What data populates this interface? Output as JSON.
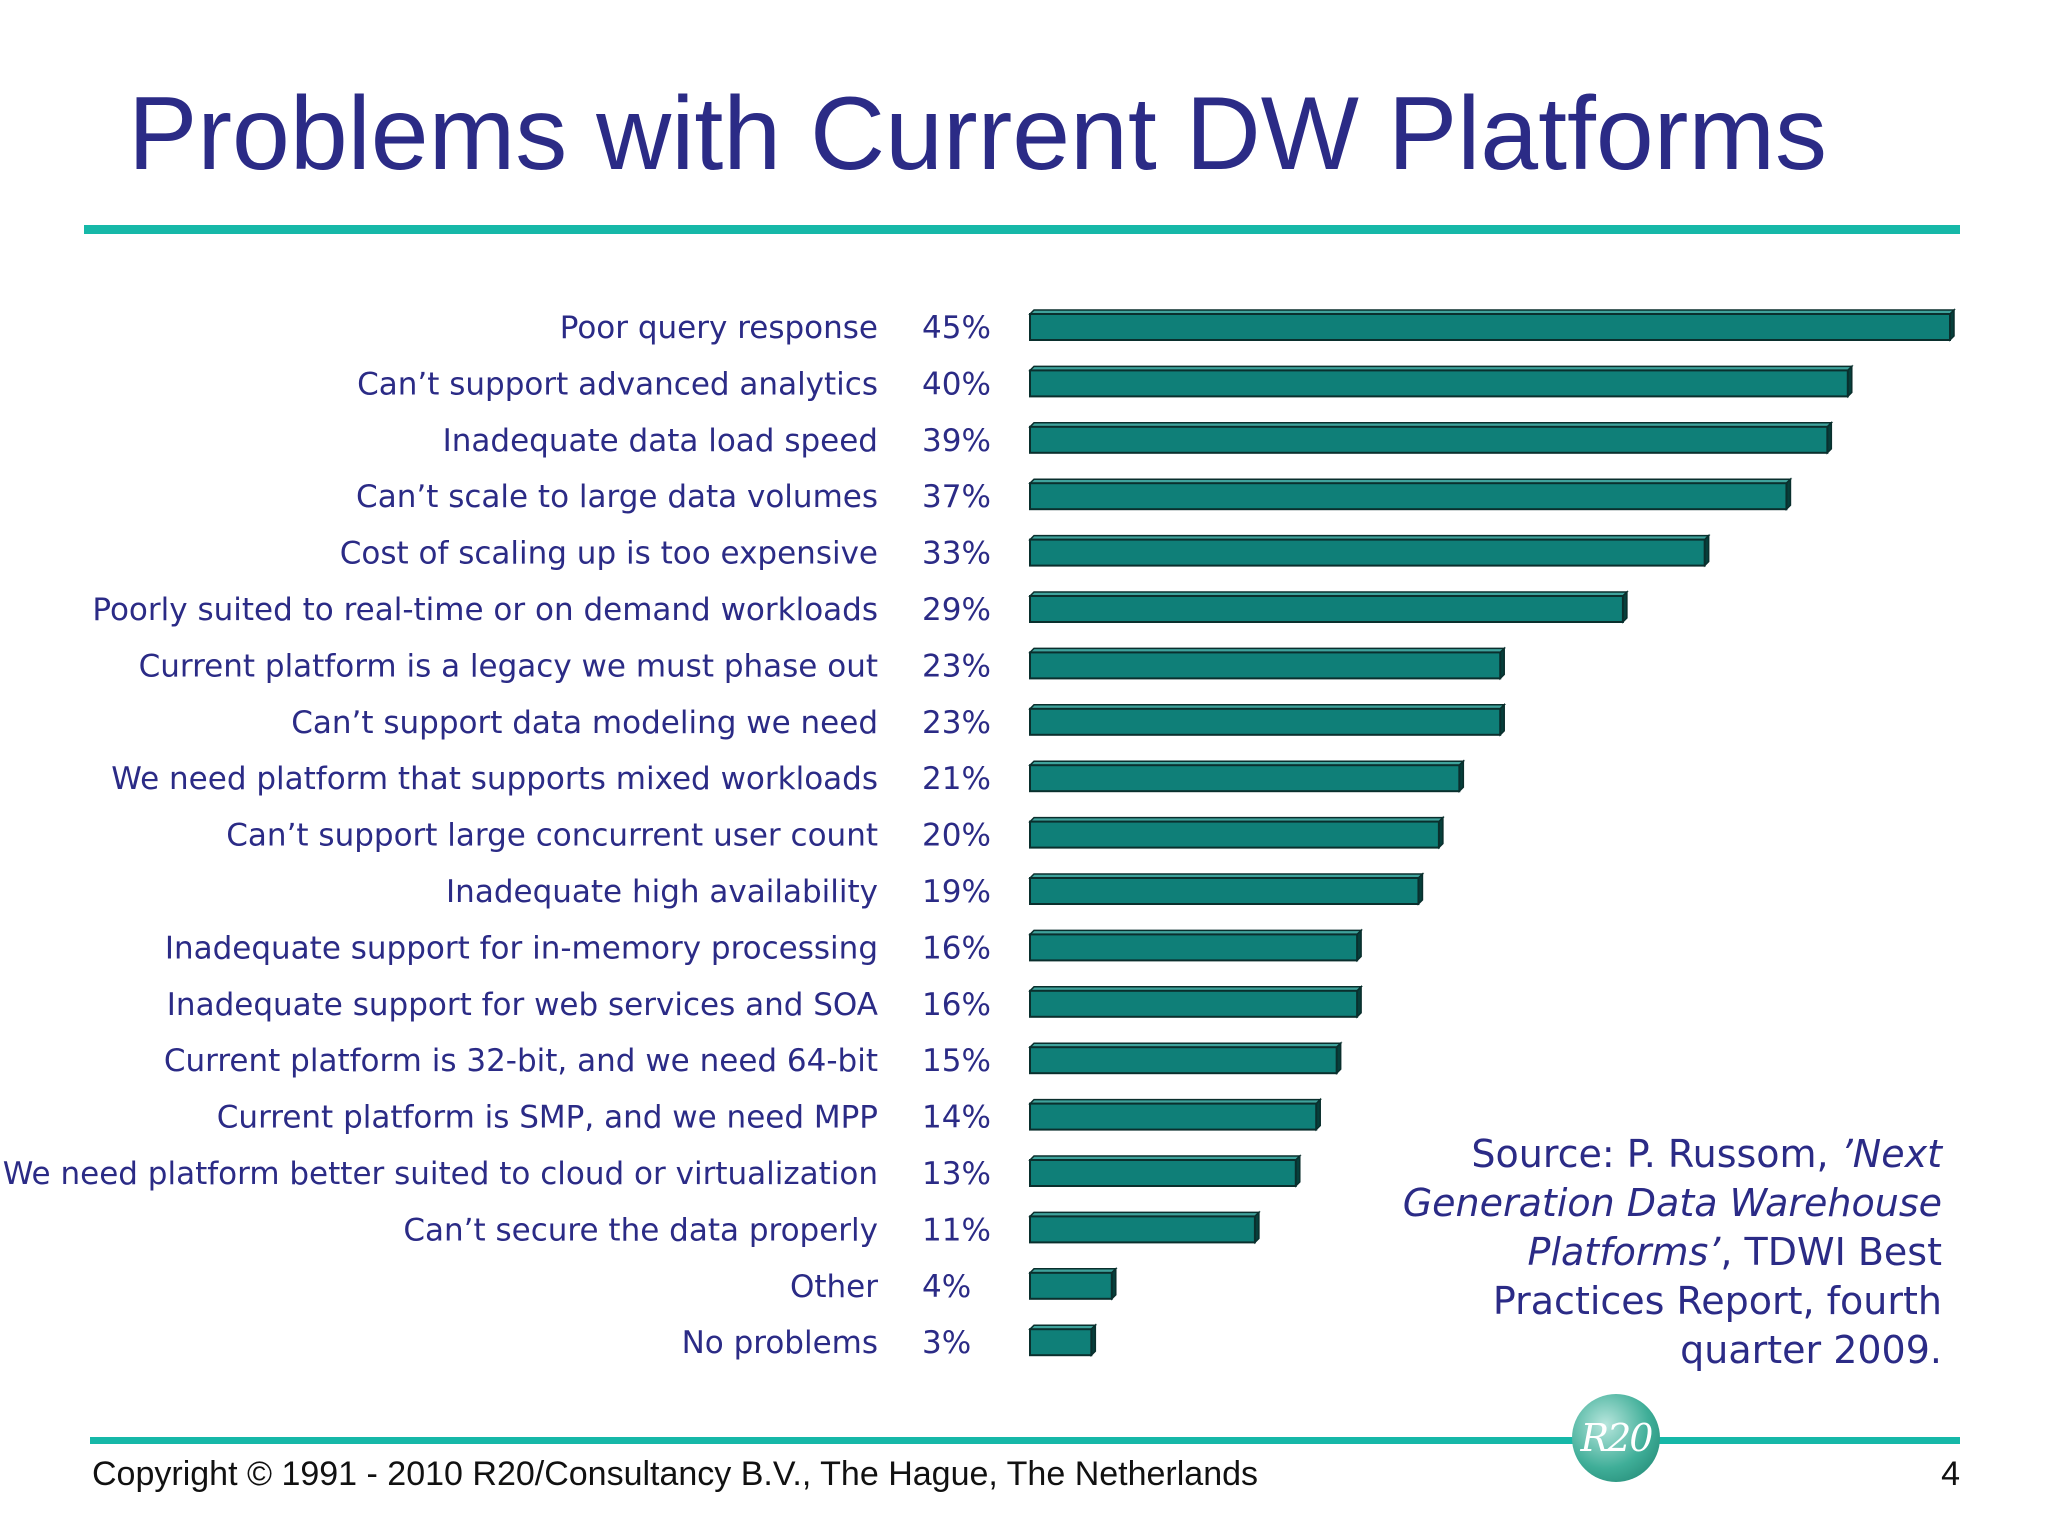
{
  "slide": {
    "title": "Problems with Current DW Platforms",
    "source_prefix": "Source: P. Russom, ",
    "source_italic": "’Next Generation Data Warehouse Platforms’",
    "source_suffix": ", TDWI Best Practices Report, fourth quarter 2009.",
    "logo_text": "R20",
    "footer": "Copyright © 1991 - 2010 R20/Consultancy B.V., The Hague, The Netherlands",
    "page_number": "4"
  },
  "colors": {
    "title": "#2b2b86",
    "accent_rule": "#16b8a8",
    "bar_fill": "#0f7f78",
    "bar_edge": "#0a2f2d"
  },
  "chart_data": {
    "type": "bar",
    "orientation": "horizontal",
    "title": "",
    "xlabel": "",
    "ylabel": "",
    "xlim": [
      0,
      45
    ],
    "grid": false,
    "legend": "none",
    "categories": [
      "Poor query response",
      "Can’t support advanced analytics",
      "Inadequate data load speed",
      "Can’t scale to large data volumes",
      "Cost of scaling up is too expensive",
      "Poorly suited to real-time or on demand workloads",
      "Current platform is a legacy we must phase out",
      "Can’t support data modeling we need",
      "We need platform that supports mixed workloads",
      "Can’t support large concurrent user count",
      "Inadequate high availability",
      "Inadequate support for in-memory processing",
      "Inadequate support for web services and SOA",
      "Current platform is 32-bit, and we need 64-bit",
      "Current platform is SMP, and we need MPP",
      "We need platform better suited to cloud or virtualization",
      "Can’t secure the data properly",
      "Other",
      "No problems"
    ],
    "values": [
      45,
      40,
      39,
      37,
      33,
      29,
      23,
      23,
      21,
      20,
      19,
      16,
      16,
      15,
      14,
      13,
      11,
      4,
      3
    ],
    "value_labels": [
      "45%",
      "40%",
      "39%",
      "37%",
      "33%",
      "29%",
      "23%",
      "23%",
      "21%",
      "20%",
      "19%",
      "16%",
      "16%",
      "15%",
      "14%",
      "13%",
      "11%",
      "4%",
      "3%"
    ]
  }
}
